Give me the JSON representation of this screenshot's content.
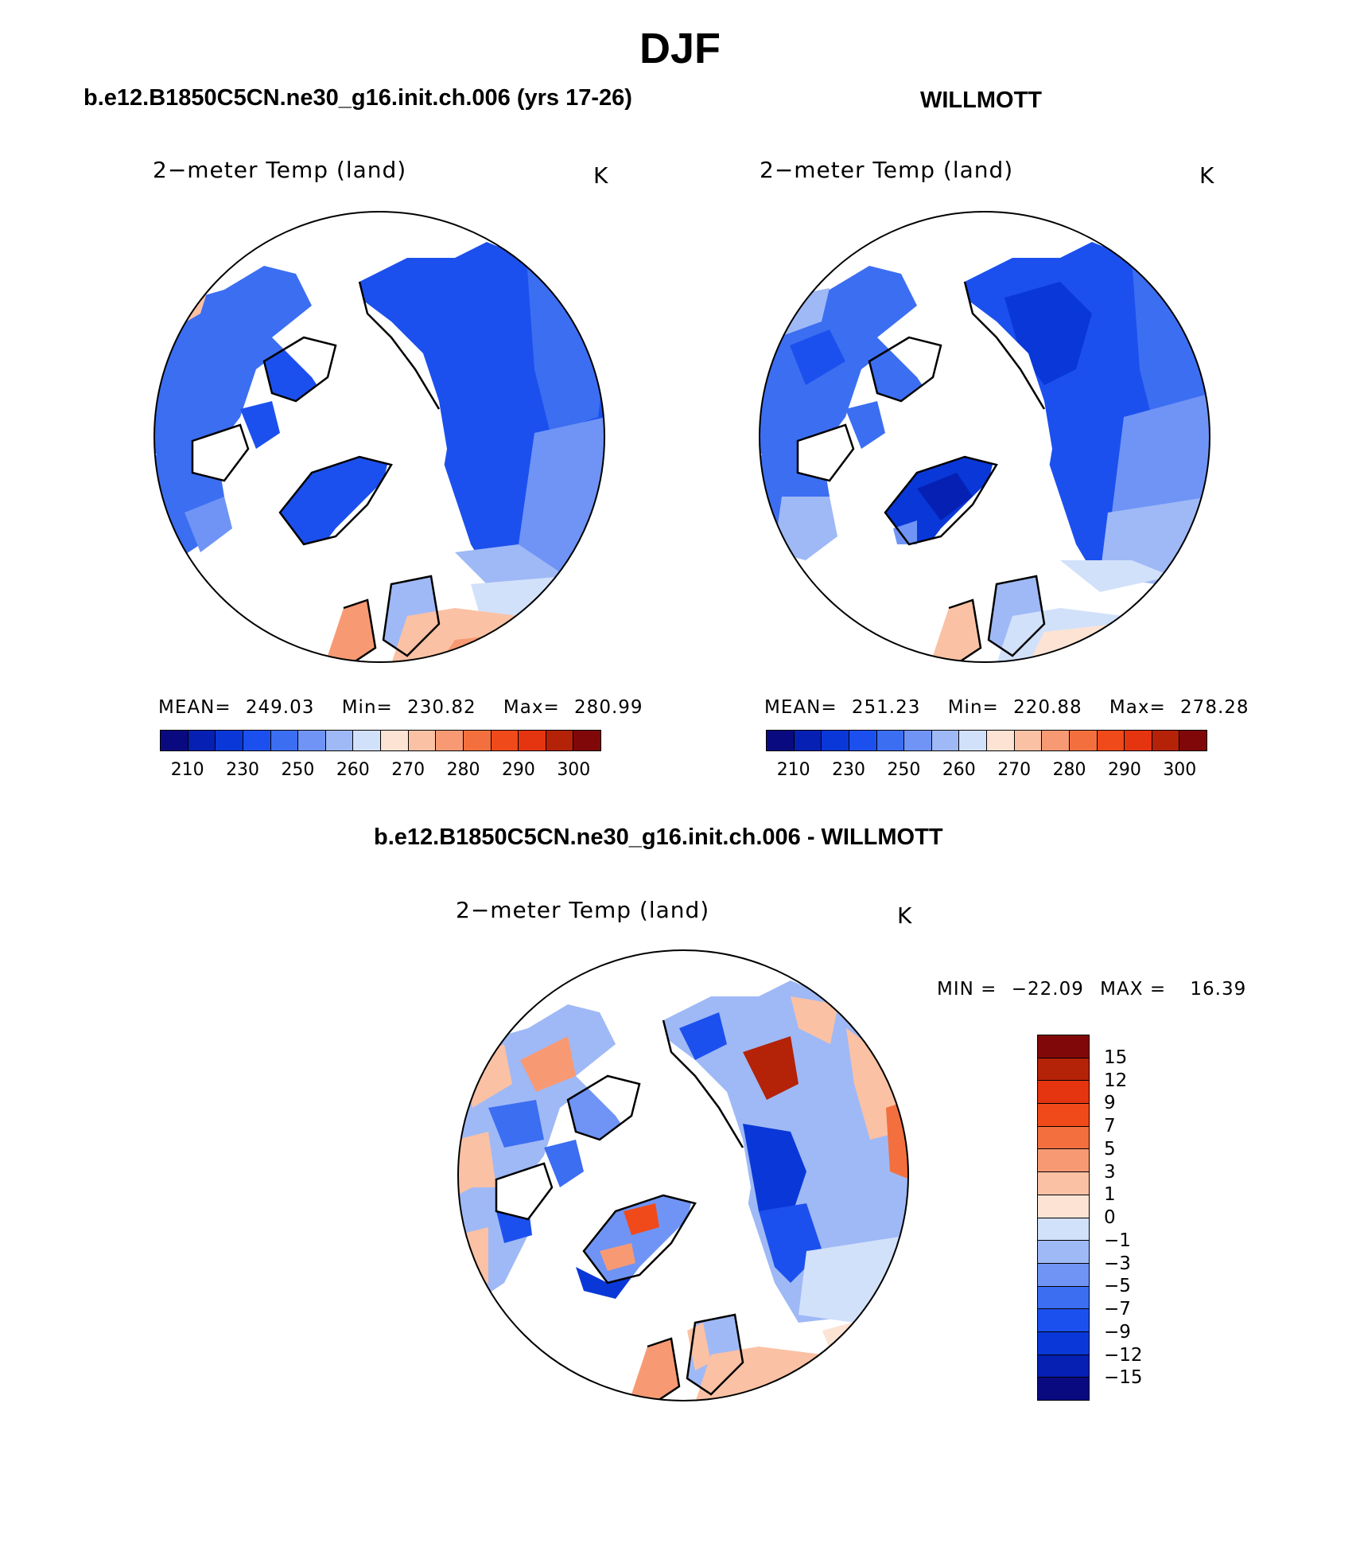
{
  "figure": {
    "season": "DJF",
    "model_case": "b.e12.B1850C5CN.ne30_g16.init.ch.006 (yrs 17-26)",
    "obs_case": "WILLMOTT",
    "diff_title": "b.e12.B1850C5CN.ne30_g16.init.ch.006 - WILLMOTT"
  },
  "panels": {
    "model": {
      "variable": "2−meter Temp (land)",
      "units": "K",
      "mean_label": "MEAN=",
      "mean_value": "249.03",
      "min_label": "Min=",
      "min_value": "230.82",
      "max_label": "Max=",
      "max_value": "280.99"
    },
    "obs": {
      "variable": "2−meter Temp (land)",
      "units": "K",
      "mean_label": "MEAN=",
      "mean_value": "251.23",
      "min_label": "Min=",
      "min_value": "220.88",
      "max_label": "Max=",
      "max_value": "278.28"
    },
    "diff": {
      "variable": "2−meter Temp (land)",
      "units": "K",
      "min_label": "MIN =",
      "min_value": "−22.09",
      "max_label": "MAX =",
      "max_value": "16.39"
    }
  },
  "colorbar_abs": {
    "colors": [
      "#0a0a80",
      "#0620b4",
      "#0a38d8",
      "#1c50ee",
      "#3c6ef2",
      "#6f94f5",
      "#9fb9f6",
      "#d2e1fa",
      "#fde3d4",
      "#fbc1a4",
      "#f79a74",
      "#f3703e",
      "#f04a1a",
      "#e43510",
      "#b42208",
      "#800808"
    ],
    "ticks": [
      "210",
      "230",
      "250",
      "260",
      "270",
      "280",
      "290",
      "300"
    ]
  },
  "colorbar_diff": {
    "colors": [
      "#800808",
      "#b42208",
      "#e43510",
      "#f04a1a",
      "#f3703e",
      "#f79a74",
      "#fbc1a4",
      "#fde3d4",
      "#d2e1fa",
      "#9fb9f6",
      "#6f94f5",
      "#3c6ef2",
      "#1c50ee",
      "#0a38d8",
      "#0620b4",
      "#0a0a80"
    ],
    "ticks": [
      "15",
      "12",
      "9",
      "7",
      "5",
      "3",
      "1",
      "0",
      "−1",
      "−3",
      "−5",
      "−7",
      "−9",
      "−12",
      "−15"
    ]
  }
}
